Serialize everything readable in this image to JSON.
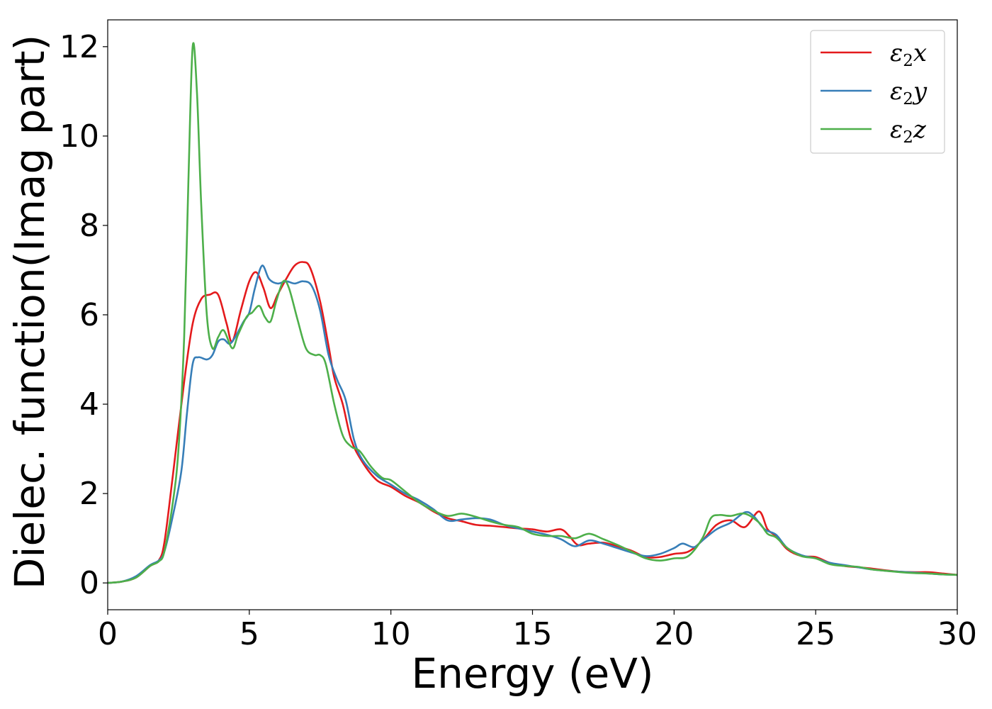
{
  "chart_data": {
    "type": "line",
    "title": "",
    "xlabel": "Energy (eV)",
    "ylabel": "Dielec. function(Imag part)",
    "xlim": [
      0,
      30
    ],
    "ylim": [
      -0.6,
      12.6
    ],
    "xticks": [
      0,
      5,
      10,
      15,
      20,
      25,
      30
    ],
    "yticks": [
      0,
      2,
      4,
      6,
      8,
      10,
      12
    ],
    "grid": false,
    "legend_position": "top-right",
    "series": [
      {
        "name": "ε₂x",
        "legend_base": "ε",
        "legend_sub": "2",
        "legend_var": "x",
        "color": "#e41a1c",
        "points": [
          [
            0,
            0
          ],
          [
            0.5,
            0.03
          ],
          [
            1.0,
            0.12
          ],
          [
            1.5,
            0.38
          ],
          [
            1.8,
            0.5
          ],
          [
            2.0,
            0.9
          ],
          [
            2.3,
            2.4
          ],
          [
            2.7,
            4.5
          ],
          [
            3.0,
            5.8
          ],
          [
            3.3,
            6.35
          ],
          [
            3.6,
            6.45
          ],
          [
            3.9,
            6.45
          ],
          [
            4.2,
            5.8
          ],
          [
            4.4,
            5.4
          ],
          [
            4.7,
            6.1
          ],
          [
            5.0,
            6.75
          ],
          [
            5.25,
            6.95
          ],
          [
            5.5,
            6.6
          ],
          [
            5.75,
            6.15
          ],
          [
            6.0,
            6.45
          ],
          [
            6.3,
            6.8
          ],
          [
            6.6,
            7.1
          ],
          [
            6.9,
            7.18
          ],
          [
            7.15,
            7.05
          ],
          [
            7.5,
            6.3
          ],
          [
            7.8,
            5.3
          ],
          [
            8.0,
            4.6
          ],
          [
            8.3,
            4.0
          ],
          [
            8.6,
            3.2
          ],
          [
            9.0,
            2.7
          ],
          [
            9.5,
            2.3
          ],
          [
            10.0,
            2.15
          ],
          [
            10.5,
            1.95
          ],
          [
            11.0,
            1.8
          ],
          [
            11.5,
            1.6
          ],
          [
            12.0,
            1.45
          ],
          [
            12.5,
            1.38
          ],
          [
            13.0,
            1.3
          ],
          [
            13.5,
            1.28
          ],
          [
            14.0,
            1.25
          ],
          [
            14.5,
            1.22
          ],
          [
            15.0,
            1.2
          ],
          [
            15.5,
            1.15
          ],
          [
            16.0,
            1.2
          ],
          [
            16.3,
            1.05
          ],
          [
            16.6,
            0.85
          ],
          [
            17.0,
            0.88
          ],
          [
            17.5,
            0.9
          ],
          [
            18.0,
            0.82
          ],
          [
            18.5,
            0.72
          ],
          [
            19.0,
            0.58
          ],
          [
            19.5,
            0.58
          ],
          [
            20.0,
            0.65
          ],
          [
            20.5,
            0.7
          ],
          [
            21.0,
            0.95
          ],
          [
            21.5,
            1.3
          ],
          [
            22.0,
            1.4
          ],
          [
            22.5,
            1.25
          ],
          [
            23.0,
            1.6
          ],
          [
            23.3,
            1.2
          ],
          [
            23.6,
            1.05
          ],
          [
            24.0,
            0.75
          ],
          [
            24.5,
            0.6
          ],
          [
            25.0,
            0.58
          ],
          [
            25.5,
            0.45
          ],
          [
            26.0,
            0.38
          ],
          [
            26.5,
            0.35
          ],
          [
            27.0,
            0.32
          ],
          [
            27.5,
            0.28
          ],
          [
            28.0,
            0.25
          ],
          [
            28.5,
            0.24
          ],
          [
            29.0,
            0.24
          ],
          [
            29.5,
            0.21
          ],
          [
            30.0,
            0.18
          ]
        ]
      },
      {
        "name": "ε₂y",
        "legend_base": "ε",
        "legend_sub": "2",
        "legend_var": "y",
        "color": "#377eb8",
        "points": [
          [
            0,
            0
          ],
          [
            0.5,
            0.03
          ],
          [
            1.0,
            0.15
          ],
          [
            1.5,
            0.4
          ],
          [
            1.8,
            0.5
          ],
          [
            2.0,
            0.7
          ],
          [
            2.3,
            1.5
          ],
          [
            2.6,
            2.5
          ],
          [
            2.8,
            3.8
          ],
          [
            3.0,
            4.9
          ],
          [
            3.2,
            5.05
          ],
          [
            3.5,
            5.0
          ],
          [
            3.7,
            5.1
          ],
          [
            3.9,
            5.4
          ],
          [
            4.1,
            5.45
          ],
          [
            4.3,
            5.35
          ],
          [
            4.5,
            5.5
          ],
          [
            4.8,
            5.85
          ],
          [
            5.0,
            6.05
          ],
          [
            5.2,
            6.6
          ],
          [
            5.45,
            7.1
          ],
          [
            5.7,
            6.8
          ],
          [
            6.0,
            6.7
          ],
          [
            6.3,
            6.75
          ],
          [
            6.6,
            6.7
          ],
          [
            6.9,
            6.75
          ],
          [
            7.2,
            6.65
          ],
          [
            7.5,
            6.1
          ],
          [
            7.8,
            5.1
          ],
          [
            8.1,
            4.55
          ],
          [
            8.4,
            4.1
          ],
          [
            8.7,
            3.2
          ],
          [
            9.0,
            2.75
          ],
          [
            9.5,
            2.4
          ],
          [
            10.0,
            2.2
          ],
          [
            10.5,
            2.0
          ],
          [
            11.0,
            1.85
          ],
          [
            11.5,
            1.65
          ],
          [
            12.0,
            1.4
          ],
          [
            12.5,
            1.42
          ],
          [
            13.0,
            1.45
          ],
          [
            13.5,
            1.42
          ],
          [
            14.0,
            1.3
          ],
          [
            14.5,
            1.22
          ],
          [
            15.0,
            1.15
          ],
          [
            15.5,
            1.08
          ],
          [
            16.0,
            0.98
          ],
          [
            16.5,
            0.82
          ],
          [
            17.0,
            0.95
          ],
          [
            17.5,
            0.88
          ],
          [
            18.0,
            0.78
          ],
          [
            18.5,
            0.68
          ],
          [
            19.0,
            0.6
          ],
          [
            19.5,
            0.65
          ],
          [
            20.0,
            0.78
          ],
          [
            20.3,
            0.88
          ],
          [
            20.7,
            0.8
          ],
          [
            21.0,
            0.95
          ],
          [
            21.5,
            1.2
          ],
          [
            22.0,
            1.35
          ],
          [
            22.5,
            1.58
          ],
          [
            22.8,
            1.5
          ],
          [
            23.2,
            1.2
          ],
          [
            23.6,
            1.08
          ],
          [
            24.0,
            0.78
          ],
          [
            24.5,
            0.62
          ],
          [
            25.0,
            0.55
          ],
          [
            25.5,
            0.45
          ],
          [
            26.0,
            0.4
          ],
          [
            26.5,
            0.35
          ],
          [
            27.0,
            0.3
          ],
          [
            27.5,
            0.27
          ],
          [
            28.0,
            0.25
          ],
          [
            28.5,
            0.23
          ],
          [
            29.0,
            0.21
          ],
          [
            29.5,
            0.19
          ],
          [
            30.0,
            0.18
          ]
        ]
      },
      {
        "name": "ε₂z",
        "legend_base": "ε",
        "legend_sub": "2",
        "legend_var": "z",
        "color": "#4daf4a",
        "points": [
          [
            0,
            0
          ],
          [
            0.5,
            0.03
          ],
          [
            1.0,
            0.12
          ],
          [
            1.5,
            0.38
          ],
          [
            1.8,
            0.48
          ],
          [
            2.0,
            0.7
          ],
          [
            2.3,
            1.8
          ],
          [
            2.5,
            3.0
          ],
          [
            2.7,
            5.5
          ],
          [
            2.85,
            9.0
          ],
          [
            3.0,
            12.0
          ],
          [
            3.15,
            11.0
          ],
          [
            3.3,
            8.5
          ],
          [
            3.5,
            6.0
          ],
          [
            3.7,
            5.25
          ],
          [
            3.9,
            5.5
          ],
          [
            4.1,
            5.65
          ],
          [
            4.4,
            5.25
          ],
          [
            4.6,
            5.55
          ],
          [
            4.9,
            5.95
          ],
          [
            5.1,
            6.05
          ],
          [
            5.35,
            6.2
          ],
          [
            5.55,
            5.95
          ],
          [
            5.75,
            5.85
          ],
          [
            5.95,
            6.3
          ],
          [
            6.2,
            6.75
          ],
          [
            6.4,
            6.6
          ],
          [
            6.7,
            5.9
          ],
          [
            7.0,
            5.25
          ],
          [
            7.3,
            5.1
          ],
          [
            7.5,
            5.1
          ],
          [
            7.7,
            4.9
          ],
          [
            8.0,
            4.0
          ],
          [
            8.3,
            3.3
          ],
          [
            8.6,
            3.05
          ],
          [
            8.9,
            2.95
          ],
          [
            9.3,
            2.6
          ],
          [
            9.7,
            2.35
          ],
          [
            10.0,
            2.3
          ],
          [
            10.5,
            2.05
          ],
          [
            11.0,
            1.8
          ],
          [
            11.5,
            1.62
          ],
          [
            12.0,
            1.5
          ],
          [
            12.5,
            1.55
          ],
          [
            13.0,
            1.48
          ],
          [
            13.5,
            1.38
          ],
          [
            14.0,
            1.3
          ],
          [
            14.5,
            1.25
          ],
          [
            15.0,
            1.1
          ],
          [
            15.5,
            1.05
          ],
          [
            16.0,
            1.05
          ],
          [
            16.5,
            1.0
          ],
          [
            17.0,
            1.1
          ],
          [
            17.5,
            0.98
          ],
          [
            18.0,
            0.85
          ],
          [
            18.5,
            0.7
          ],
          [
            19.0,
            0.55
          ],
          [
            19.5,
            0.5
          ],
          [
            20.0,
            0.55
          ],
          [
            20.5,
            0.6
          ],
          [
            21.0,
            1.0
          ],
          [
            21.3,
            1.45
          ],
          [
            21.6,
            1.52
          ],
          [
            22.0,
            1.5
          ],
          [
            22.5,
            1.55
          ],
          [
            23.0,
            1.35
          ],
          [
            23.3,
            1.1
          ],
          [
            23.6,
            1.02
          ],
          [
            24.0,
            0.78
          ],
          [
            24.5,
            0.6
          ],
          [
            25.0,
            0.55
          ],
          [
            25.5,
            0.42
          ],
          [
            26.0,
            0.38
          ],
          [
            26.5,
            0.36
          ],
          [
            27.0,
            0.3
          ],
          [
            27.5,
            0.27
          ],
          [
            28.0,
            0.24
          ],
          [
            28.5,
            0.22
          ],
          [
            29.0,
            0.21
          ],
          [
            29.5,
            0.19
          ],
          [
            30.0,
            0.18
          ]
        ]
      }
    ]
  }
}
